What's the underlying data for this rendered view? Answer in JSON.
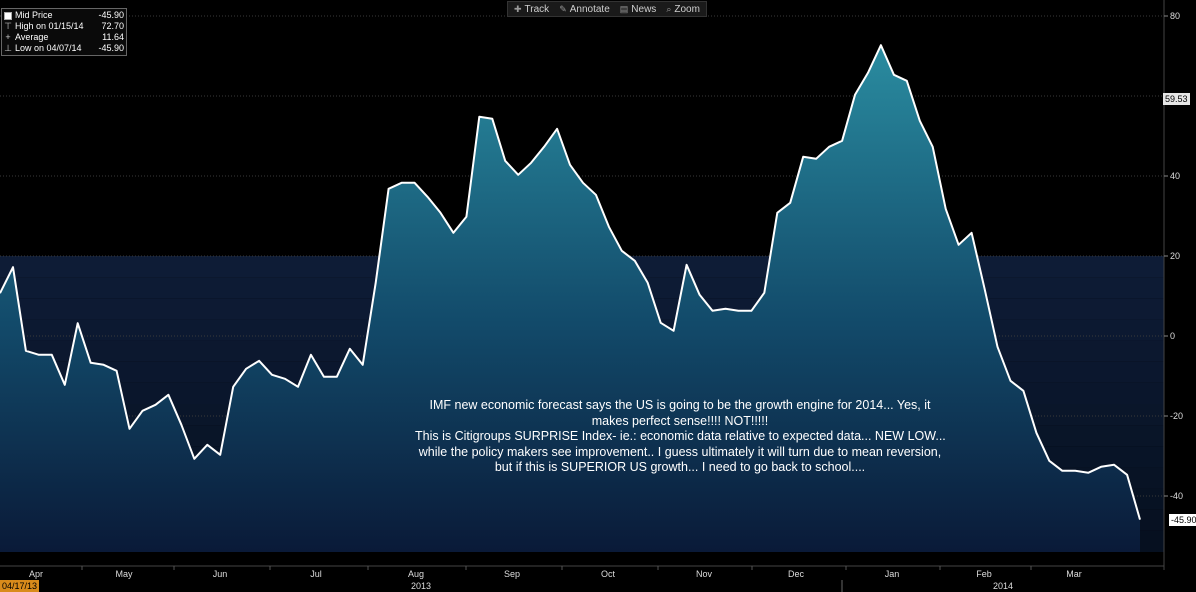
{
  "toolbar": {
    "track": "Track",
    "annotate": "Annotate",
    "news": "News",
    "zoom": "Zoom"
  },
  "legend": {
    "rows": [
      {
        "label": "Mid Price",
        "value": "-45.90"
      },
      {
        "label": "High on 01/15/14",
        "value": "72.70"
      },
      {
        "label": "Average",
        "value": "11.64"
      },
      {
        "label": "Low on 04/07/14",
        "value": "-45.90"
      }
    ]
  },
  "annotation": {
    "lines": [
      "IMF new economic forecast says the US is going to be the growth engine for 2014... Yes, it",
      "makes perfect sense!!!! NOT!!!!!",
      "This is Citigroups SURPRISE Index- ie.: economic data relative to expected data... NEW LOW...",
      "while the policy makers see improvement.. I guess ultimately it will turn due to mean reversion,",
      "but if this is SUPERIOR US growth... I need to go back to school...."
    ]
  },
  "tags": {
    "high_label": "59.53",
    "last_label": "-45.90",
    "start_date": "04/17/13"
  },
  "colors": {
    "background": "#000000",
    "line": "#ffffff",
    "fill_top": "#2a8ca0",
    "fill_bottom": "#0c1c3a",
    "start_tag": "#d98b1b"
  },
  "chart_data": {
    "type": "area",
    "ylim": [
      -56,
      80
    ],
    "yticks": [
      80,
      60,
      40,
      20,
      0,
      -20,
      -40
    ],
    "ytick_labels": [
      "80",
      "",
      "40",
      "20",
      "0",
      "-20",
      "-40"
    ],
    "xlim": [
      0,
      1148
    ],
    "months": [
      {
        "label": "Apr",
        "x": 36
      },
      {
        "label": "May",
        "x": 124
      },
      {
        "label": "Jun",
        "x": 220
      },
      {
        "label": "Jul",
        "x": 316
      },
      {
        "label": "Aug",
        "x": 416
      },
      {
        "label": "Sep",
        "x": 512
      },
      {
        "label": "Oct",
        "x": 608
      },
      {
        "label": "Nov",
        "x": 704
      },
      {
        "label": "Dec",
        "x": 796
      },
      {
        "label": "Jan",
        "x": 892
      },
      {
        "label": "Feb",
        "x": 984
      },
      {
        "label": "Mar",
        "x": 1074
      }
    ],
    "years": [
      {
        "label": "2013",
        "x": 421
      },
      {
        "label": "2014",
        "x": 1003
      }
    ],
    "series": [
      {
        "values": [
          [
            0,
            10.7
          ],
          [
            13,
            17.2
          ],
          [
            26,
            -3.7
          ],
          [
            39,
            -4.7
          ],
          [
            52,
            -4.7
          ],
          [
            65,
            -12.2
          ],
          [
            78,
            3.2
          ],
          [
            91,
            -6.7
          ],
          [
            104,
            -7.2
          ],
          [
            117,
            -8.7
          ],
          [
            130,
            -23.2
          ],
          [
            143,
            -18.7
          ],
          [
            156,
            -17.2
          ],
          [
            169,
            -14.7
          ],
          [
            182,
            -22.2
          ],
          [
            195,
            -30.7
          ],
          [
            208,
            -27.2
          ],
          [
            221,
            -29.7
          ],
          [
            234,
            -12.7
          ],
          [
            247,
            -8.2
          ],
          [
            260,
            -6.2
          ],
          [
            273,
            -9.7
          ],
          [
            286,
            -10.7
          ],
          [
            299,
            -12.7
          ],
          [
            312,
            -4.7
          ],
          [
            325,
            -10.2
          ],
          [
            338,
            -10.2
          ],
          [
            351,
            -3.2
          ],
          [
            364,
            -7.2
          ],
          [
            377,
            13.3
          ],
          [
            390,
            36.8
          ],
          [
            403,
            38.3
          ],
          [
            416,
            38.3
          ],
          [
            429,
            34.8
          ],
          [
            442,
            30.8
          ],
          [
            455,
            25.8
          ],
          [
            468,
            29.8
          ],
          [
            481,
            54.8
          ],
          [
            494,
            54.3
          ],
          [
            507,
            43.8
          ],
          [
            520,
            40.3
          ],
          [
            533,
            43.3
          ],
          [
            546,
            47.3
          ],
          [
            559,
            51.8
          ],
          [
            572,
            42.8
          ],
          [
            585,
            38.3
          ],
          [
            598,
            35.3
          ],
          [
            611,
            27.3
          ],
          [
            624,
            21.3
          ],
          [
            637,
            18.8
          ],
          [
            650,
            13.3
          ],
          [
            663,
            3.3
          ],
          [
            676,
            1.3
          ],
          [
            689,
            17.8
          ],
          [
            702,
            10.3
          ],
          [
            715,
            6.3
          ],
          [
            728,
            6.8
          ],
          [
            741,
            6.3
          ],
          [
            754,
            6.3
          ],
          [
            767,
            10.8
          ],
          [
            780,
            30.8
          ],
          [
            793,
            33.3
          ],
          [
            806,
            44.8
          ],
          [
            819,
            44.3
          ],
          [
            832,
            47.3
          ],
          [
            845,
            48.8
          ],
          [
            858,
            60.3
          ],
          [
            871,
            65.8
          ],
          [
            884,
            72.7
          ],
          [
            897,
            65.3
          ],
          [
            910,
            63.8
          ],
          [
            923,
            53.8
          ],
          [
            936,
            47.3
          ],
          [
            949,
            31.8
          ],
          [
            962,
            22.8
          ],
          [
            975,
            25.8
          ],
          [
            988,
            11.8
          ],
          [
            1001,
            -2.7
          ],
          [
            1014,
            -11.2
          ],
          [
            1027,
            -13.7
          ],
          [
            1040,
            -24.2
          ],
          [
            1053,
            -31.2
          ],
          [
            1066,
            -33.7
          ],
          [
            1079,
            -33.7
          ],
          [
            1092,
            -34.2
          ],
          [
            1105,
            -32.7
          ],
          [
            1118,
            -32.2
          ],
          [
            1131,
            -34.7
          ],
          [
            1144,
            -45.9
          ]
        ]
      }
    ]
  }
}
